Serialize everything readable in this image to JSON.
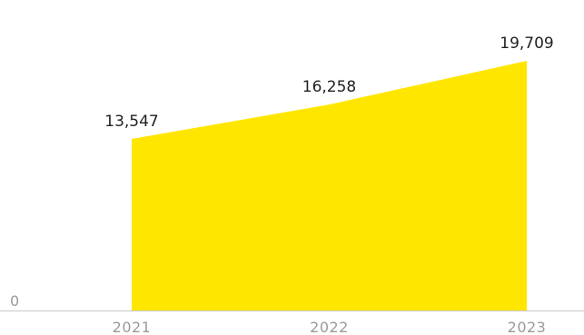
{
  "chart_data": {
    "type": "area",
    "categories": [
      "2021",
      "2022",
      "2023"
    ],
    "series": [
      {
        "values": [
          13547,
          16258,
          19709
        ]
      }
    ],
    "data_labels": [
      "13,547",
      "16,258",
      "19,709"
    ],
    "y_tick_labels": [
      "0"
    ],
    "ylim": [
      0,
      21500
    ],
    "grid": false,
    "legend": "none",
    "colors": {
      "area": "#FFE600",
      "axis_line": "#c8c8c8",
      "tick_text": "#9a9a9a",
      "label_text": "#222222"
    }
  }
}
